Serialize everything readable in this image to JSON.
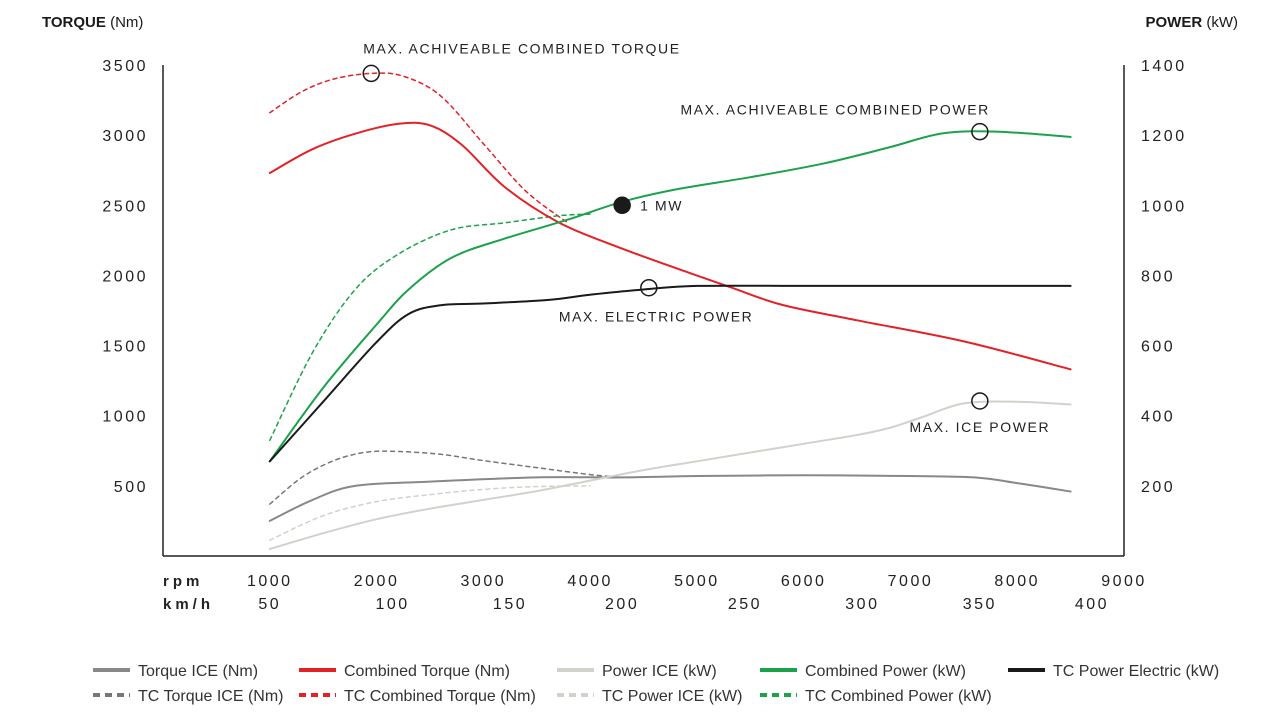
{
  "chart_data": {
    "type": "line",
    "y_left_label_bold": "TORQUE",
    "y_left_label_unit": "(Nm)",
    "y_right_label_bold": "POWER",
    "y_right_label_unit": "(kW)",
    "y_left_ticks": [
      "500",
      "1000",
      "1500",
      "2000",
      "2500",
      "3000",
      "3500"
    ],
    "y_right_ticks": [
      "200",
      "400",
      "600",
      "800",
      "1000",
      "1200",
      "1400"
    ],
    "y_left_range": [
      0,
      3500
    ],
    "y_right_range": [
      0,
      1400
    ],
    "x_range": [
      0,
      9000
    ],
    "x_rpm_label": "rpm",
    "x_kmh_label": "km/h",
    "x_rpm_ticks": [
      "1000",
      "2000",
      "3000",
      "4000",
      "5000",
      "6000",
      "7000",
      "8000",
      "9000"
    ],
    "x_kmh_ticks": [
      {
        "label": "50",
        "rpm": 1000
      },
      {
        "label": "100",
        "rpm": 2150
      },
      {
        "label": "150",
        "rpm": 3250
      },
      {
        "label": "200",
        "rpm": 4300
      },
      {
        "label": "250",
        "rpm": 5450
      },
      {
        "label": "300",
        "rpm": 6550
      },
      {
        "label": "350",
        "rpm": 7650
      },
      {
        "label": "400",
        "rpm": 8700
      }
    ],
    "series": [
      {
        "name": "Torque ICE (Nm)",
        "axis": "left",
        "color": "#888888",
        "dash": false,
        "points": [
          [
            1000,
            250
          ],
          [
            1400,
            400
          ],
          [
            1800,
            500
          ],
          [
            2500,
            530
          ],
          [
            3500,
            560
          ],
          [
            4300,
            560
          ],
          [
            5000,
            570
          ],
          [
            6000,
            575
          ],
          [
            7000,
            570
          ],
          [
            7600,
            560
          ],
          [
            8000,
            520
          ],
          [
            8500,
            460
          ]
        ]
      },
      {
        "name": "Combined Torque (Nm)",
        "axis": "left",
        "color": "#e42127",
        "dash": false,
        "points": [
          [
            1000,
            2730
          ],
          [
            1400,
            2900
          ],
          [
            1800,
            3010
          ],
          [
            2200,
            3080
          ],
          [
            2500,
            3070
          ],
          [
            2800,
            2930
          ],
          [
            3200,
            2630
          ],
          [
            3700,
            2380
          ],
          [
            4200,
            2220
          ],
          [
            4700,
            2080
          ],
          [
            5300,
            1920
          ],
          [
            5800,
            1790
          ],
          [
            6500,
            1680
          ],
          [
            7500,
            1530
          ],
          [
            8500,
            1330
          ]
        ]
      },
      {
        "name": "Power ICE (kW)",
        "axis": "right",
        "color": "#d3d1cb",
        "dash": false,
        "points": [
          [
            1000,
            20
          ],
          [
            1500,
            65
          ],
          [
            2000,
            105
          ],
          [
            2500,
            135
          ],
          [
            3000,
            160
          ],
          [
            3500,
            185
          ],
          [
            4000,
            215
          ],
          [
            4500,
            245
          ],
          [
            5000,
            270
          ],
          [
            5500,
            295
          ],
          [
            6000,
            320
          ],
          [
            6500,
            345
          ],
          [
            6800,
            365
          ],
          [
            7100,
            395
          ],
          [
            7500,
            435
          ],
          [
            8000,
            440
          ],
          [
            8500,
            432
          ]
        ]
      },
      {
        "name": "Combined Power (kW)",
        "axis": "right",
        "color": "#1ba24a",
        "dash": false,
        "points": [
          [
            1000,
            270
          ],
          [
            1500,
            480
          ],
          [
            2000,
            660
          ],
          [
            2300,
            760
          ],
          [
            2700,
            850
          ],
          [
            3200,
            905
          ],
          [
            3800,
            960
          ],
          [
            4300,
            1010
          ],
          [
            4800,
            1045
          ],
          [
            5500,
            1080
          ],
          [
            6200,
            1120
          ],
          [
            6800,
            1165
          ],
          [
            7300,
            1205
          ],
          [
            7800,
            1210
          ],
          [
            8500,
            1195
          ]
        ]
      },
      {
        "name": "TC Power Electric (kW)",
        "axis": "right",
        "color": "#1a1a1a",
        "dash": false,
        "points": [
          [
            1000,
            270
          ],
          [
            1500,
            440
          ],
          [
            2000,
            610
          ],
          [
            2300,
            690
          ],
          [
            2600,
            715
          ],
          [
            3000,
            720
          ],
          [
            3600,
            730
          ],
          [
            4000,
            745
          ],
          [
            4500,
            760
          ],
          [
            5000,
            770
          ],
          [
            6000,
            770
          ],
          [
            7000,
            770
          ],
          [
            8000,
            770
          ],
          [
            8500,
            770
          ]
        ]
      },
      {
        "name": "TC Torque ICE (Nm)",
        "axis": "left",
        "color": "#777777",
        "dash": true,
        "points": [
          [
            1000,
            370
          ],
          [
            1300,
            560
          ],
          [
            1600,
            680
          ],
          [
            1900,
            740
          ],
          [
            2200,
            745
          ],
          [
            2600,
            725
          ],
          [
            3000,
            680
          ],
          [
            3500,
            630
          ],
          [
            4000,
            580
          ],
          [
            4300,
            560
          ]
        ]
      },
      {
        "name": "TC Combined Torque (Nm)",
        "axis": "left",
        "color": "#e42127",
        "dash": true,
        "points": [
          [
            1000,
            3160
          ],
          [
            1300,
            3310
          ],
          [
            1600,
            3400
          ],
          [
            1950,
            3440
          ],
          [
            2250,
            3420
          ],
          [
            2600,
            3280
          ],
          [
            3000,
            2940
          ],
          [
            3400,
            2600
          ],
          [
            3800,
            2370
          ]
        ]
      },
      {
        "name": "TC Power ICE (kW)",
        "axis": "right",
        "color": "#d3d1cb",
        "dash": true,
        "points": [
          [
            1000,
            45
          ],
          [
            1500,
            115
          ],
          [
            2000,
            155
          ],
          [
            2500,
            175
          ],
          [
            3000,
            190
          ],
          [
            3500,
            198
          ],
          [
            4000,
            200
          ]
        ]
      },
      {
        "name": "TC Combined Power (kW)",
        "axis": "right",
        "color": "#1ba24a",
        "dash": true,
        "points": [
          [
            1000,
            330
          ],
          [
            1400,
            580
          ],
          [
            1800,
            760
          ],
          [
            2200,
            860
          ],
          [
            2700,
            930
          ],
          [
            3200,
            950
          ],
          [
            3700,
            970
          ],
          [
            4000,
            975
          ]
        ]
      }
    ],
    "markers": [
      {
        "label": "MAX. ACHIVEABLE COMBINED TORQUE",
        "rpm": 1950,
        "value": 3440,
        "axis": "left",
        "filled": false,
        "label_dx": -8,
        "label_dy": -20,
        "anchor": "start"
      },
      {
        "label": "MAX. ACHIVEABLE COMBINED POWER",
        "rpm": 7650,
        "value": 1210,
        "axis": "right",
        "filled": false,
        "label_dx": 10,
        "label_dy": -17,
        "anchor": "end"
      },
      {
        "label": "1 MW",
        "rpm": 4300,
        "value": 1000,
        "axis": "right",
        "filled": true,
        "label_dx": 18,
        "label_dy": 5,
        "anchor": "start"
      },
      {
        "label": "MAX. ELECTRIC POWER",
        "rpm": 4550,
        "value": 765,
        "axis": "right",
        "filled": false,
        "label_dx": -90,
        "label_dy": 34,
        "anchor": "start"
      },
      {
        "label": "MAX. ICE POWER",
        "rpm": 7650,
        "value": 442,
        "axis": "right",
        "filled": false,
        "label_dx": 0,
        "label_dy": 31,
        "anchor": "middle"
      }
    ],
    "legend": [
      {
        "label": "Torque ICE (Nm)",
        "color": "#888888",
        "dash": false
      },
      {
        "label": "Combined Torque (Nm)",
        "color": "#e42127",
        "dash": false
      },
      {
        "label": "Power ICE (kW)",
        "color": "#d3d1cb",
        "dash": false
      },
      {
        "label": "Combined Power (kW)",
        "color": "#1ba24a",
        "dash": false
      },
      {
        "label": "TC Power Electric (kW)",
        "color": "#1a1a1a",
        "dash": false
      },
      {
        "label": "TC Torque ICE (Nm)",
        "color": "#777777",
        "dash": true
      },
      {
        "label": "TC Combined Torque (Nm)",
        "color": "#e42127",
        "dash": true
      },
      {
        "label": "TC Power ICE (kW)",
        "color": "#d3d1cb",
        "dash": true
      },
      {
        "label": "TC Combined Power (kW)",
        "color": "#1ba24a",
        "dash": true
      }
    ],
    "grid": false,
    "legend_position": "bottom"
  }
}
